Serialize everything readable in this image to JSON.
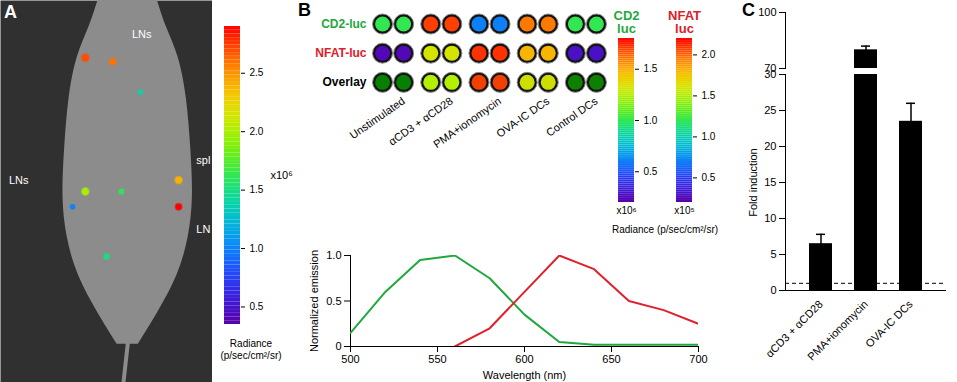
{
  "chart_data": [
    {
      "type": "image",
      "title": "A",
      "regions": [
        {
          "label": "LNs",
          "radiance": 2.7
        },
        {
          "label": null,
          "radiance": 2.6
        },
        {
          "label": null,
          "radiance": 1.4
        },
        {
          "label": "LNs",
          "radiance": 2.0
        },
        {
          "label": null,
          "radiance": 1.6
        },
        {
          "label": "spl",
          "radiance": 2.4
        },
        {
          "label": "LN",
          "radiance": 2.9
        },
        {
          "label": null,
          "radiance": 1.5
        },
        {
          "label": null,
          "radiance": 1.0
        }
      ],
      "colorbar": {
        "range": [
          0.35,
          2.9
        ],
        "ticks": [
          0.5,
          {
            "value": 1,
            "label": "1.0"
          },
          1.5,
          {
            "value": 2,
            "label": "2.0"
          },
          2.5
        ],
        "unit": "x10⁶",
        "label": "Radiance (p/sec/cm²/sr)"
      }
    },
    {
      "type": "heatmap",
      "title": "B",
      "rows": [
        "CD2-luc",
        "NFAT-luc",
        "Overlay"
      ],
      "categories": [
        "Unstimulated",
        "αCD3 + αCD28",
        "PMA+ionomycin",
        "OVA-IC DCs",
        "Control DCs"
      ],
      "series": [
        {
          "name": "CD2\nluc",
          "color": "#1fa83c",
          "values": [
            1.0,
            1.7,
            0.6,
            1.6,
            1.0
          ],
          "colorbar": {
            "range": [
              0.2,
              1.8
            ],
            "ticks": [
              0.5,
              {
                "value": 1,
                "label": "1.0"
              },
              1.5
            ],
            "unit": "x10⁶"
          }
        },
        {
          "name": "NFAT\nluc",
          "color": "#e0202a",
          "values": [
            0.25,
            1.6,
            2.1,
            1.8,
            0.3
          ],
          "colorbar": {
            "range": [
              0.2,
              2.2
            ],
            "ticks": [
              0.5,
              {
                "value": 1,
                "label": "1.0"
              },
              1.5,
              {
                "value": 2,
                "label": "2.0"
              }
            ],
            "unit": "x10⁵"
          }
        }
      ],
      "colorbar_label": "Radiance (p/sec/cm²/sr)"
    },
    {
      "type": "line",
      "x": [
        500,
        520,
        540,
        560,
        580,
        600,
        620,
        640,
        660,
        680,
        700
      ],
      "xlim": [
        500,
        700
      ],
      "xticks": [
        500,
        550,
        600,
        650,
        700
      ],
      "ylim": [
        0,
        1
      ],
      "yticks": [
        0,
        0.5,
        {
          "value": 1,
          "label": "1.0"
        }
      ],
      "xlabel": "Wavelength (nm)",
      "ylabel": "Normalized emission",
      "series": [
        {
          "name": "CD2 luc",
          "color": "#1fa83c",
          "values": [
            0.15,
            0.6,
            0.95,
            1.0,
            0.75,
            0.35,
            0.05,
            0.02,
            0.02,
            0.02,
            0.02
          ]
        },
        {
          "name": "NFAT luc",
          "color": "#e0202a",
          "values": [
            null,
            null,
            null,
            0,
            0.2,
            0.6,
            1.0,
            0.85,
            0.5,
            0.4,
            0.25
          ]
        }
      ]
    },
    {
      "type": "bar",
      "title": "C",
      "categories": [
        "αCD3 + αCD28",
        "PMA+ionomycin",
        "OVA-IC DCs"
      ],
      "values": [
        6.5,
        80,
        23.5
      ],
      "errors": [
        1.3,
        2,
        2.5
      ],
      "ylim": [
        0,
        100
      ],
      "yticks": [
        0,
        5,
        10,
        15,
        20,
        25,
        30,
        70,
        100
      ],
      "axis_break": [
        30,
        70
      ],
      "reference_line": 1,
      "ylabel": "Fold induction",
      "color": "#000000"
    }
  ]
}
